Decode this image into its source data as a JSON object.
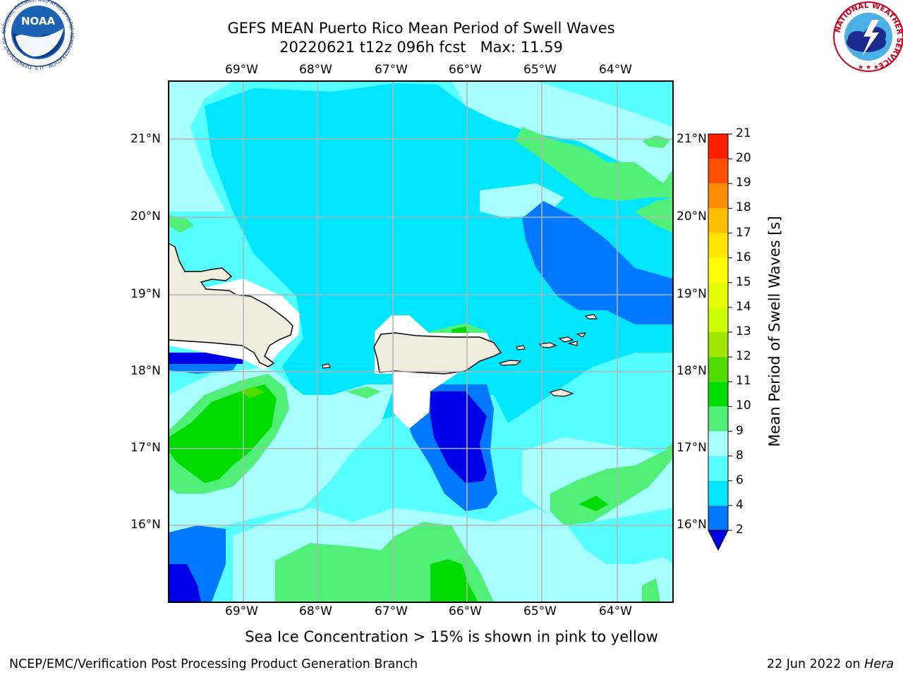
{
  "title": {
    "line1": "GEFS MEAN Puerto Rico Mean Period of Swell Waves",
    "line2": "20220621 t12z 096h fcst   Max: 11.59"
  },
  "map": {
    "lon_labels": [
      "69°W",
      "68°W",
      "67°W",
      "66°W",
      "65°W",
      "64°W"
    ],
    "lat_labels": [
      "21°N",
      "20°N",
      "19°N",
      "18°N",
      "17°N",
      "16°N"
    ],
    "islands": [
      "Hispaniola",
      "Puerto Rico",
      "Virgin Islands"
    ],
    "land_color": "#efedde"
  },
  "colorbar": {
    "label": "Mean Period of Swell Waves [s]",
    "ticks": [
      "2",
      "4",
      "6",
      "8",
      "9",
      "10",
      "11",
      "12",
      "13",
      "14",
      "15",
      "16",
      "17",
      "18",
      "19",
      "20",
      "21"
    ],
    "colors": [
      "#0000e6",
      "#0078ff",
      "#00e6ff",
      "#55ffff",
      "#a8ffff",
      "#50f078",
      "#00dc00",
      "#50dc00",
      "#a0e600",
      "#cdff00",
      "#e6ff00",
      "#ffff00",
      "#ffe600",
      "#ffbe00",
      "#ff8c00",
      "#ff5000",
      "#ff1e00",
      "#ff0000"
    ],
    "extend": "min"
  },
  "note": "Sea Ice Concentration > 15% is shown in pink to yellow",
  "footer": {
    "left": "NCEP/EMC/Verification Post Processing Product Generation Branch",
    "right_date": "22 Jun 2022 on ",
    "right_host": "Hera"
  },
  "logos": {
    "noaa": "NOAA",
    "noaa_ring": "NATIONAL OCEANIC AND ATMOSPHERIC ADMINISTRATION · U.S. DEPARTMENT OF COMMERCE ·",
    "nws_ring": "NATIONAL WEATHER SERVICE"
  }
}
